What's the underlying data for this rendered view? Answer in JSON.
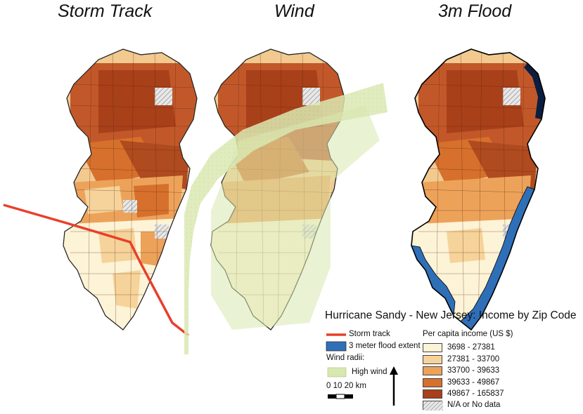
{
  "panels": [
    {
      "title": "Storm Track"
    },
    {
      "title": "Wind"
    },
    {
      "title": "3m Flood"
    }
  ],
  "legend": {
    "title": "Hurricane Sandy - New Jersey: Income by Zip Code",
    "storm_track_label": "Storm track",
    "flood_label": "3 meter flood extent",
    "wind_radii_label": "Wind radii:",
    "high_wind_label": "High wind",
    "scale_label": "0  10 20 km",
    "income_title": "Per capita income (US $)",
    "income_classes": [
      {
        "label": "3698 - 27381",
        "color": "#fdf3d6"
      },
      {
        "label": "27381 - 33700",
        "color": "#f6d39a"
      },
      {
        "label": "33700 - 39633",
        "color": "#eda25a"
      },
      {
        "label": "39633 - 49867",
        "color": "#d6702c"
      },
      {
        "label": "49867 - 165837",
        "color": "#a8401a"
      }
    ],
    "na_label": "N/A or No data"
  },
  "colors": {
    "storm_track": "#e8402a",
    "flood": "#2e6fb8",
    "high_wind": "#d8e8b0"
  },
  "icons": [
    "north-arrow-icon"
  ]
}
